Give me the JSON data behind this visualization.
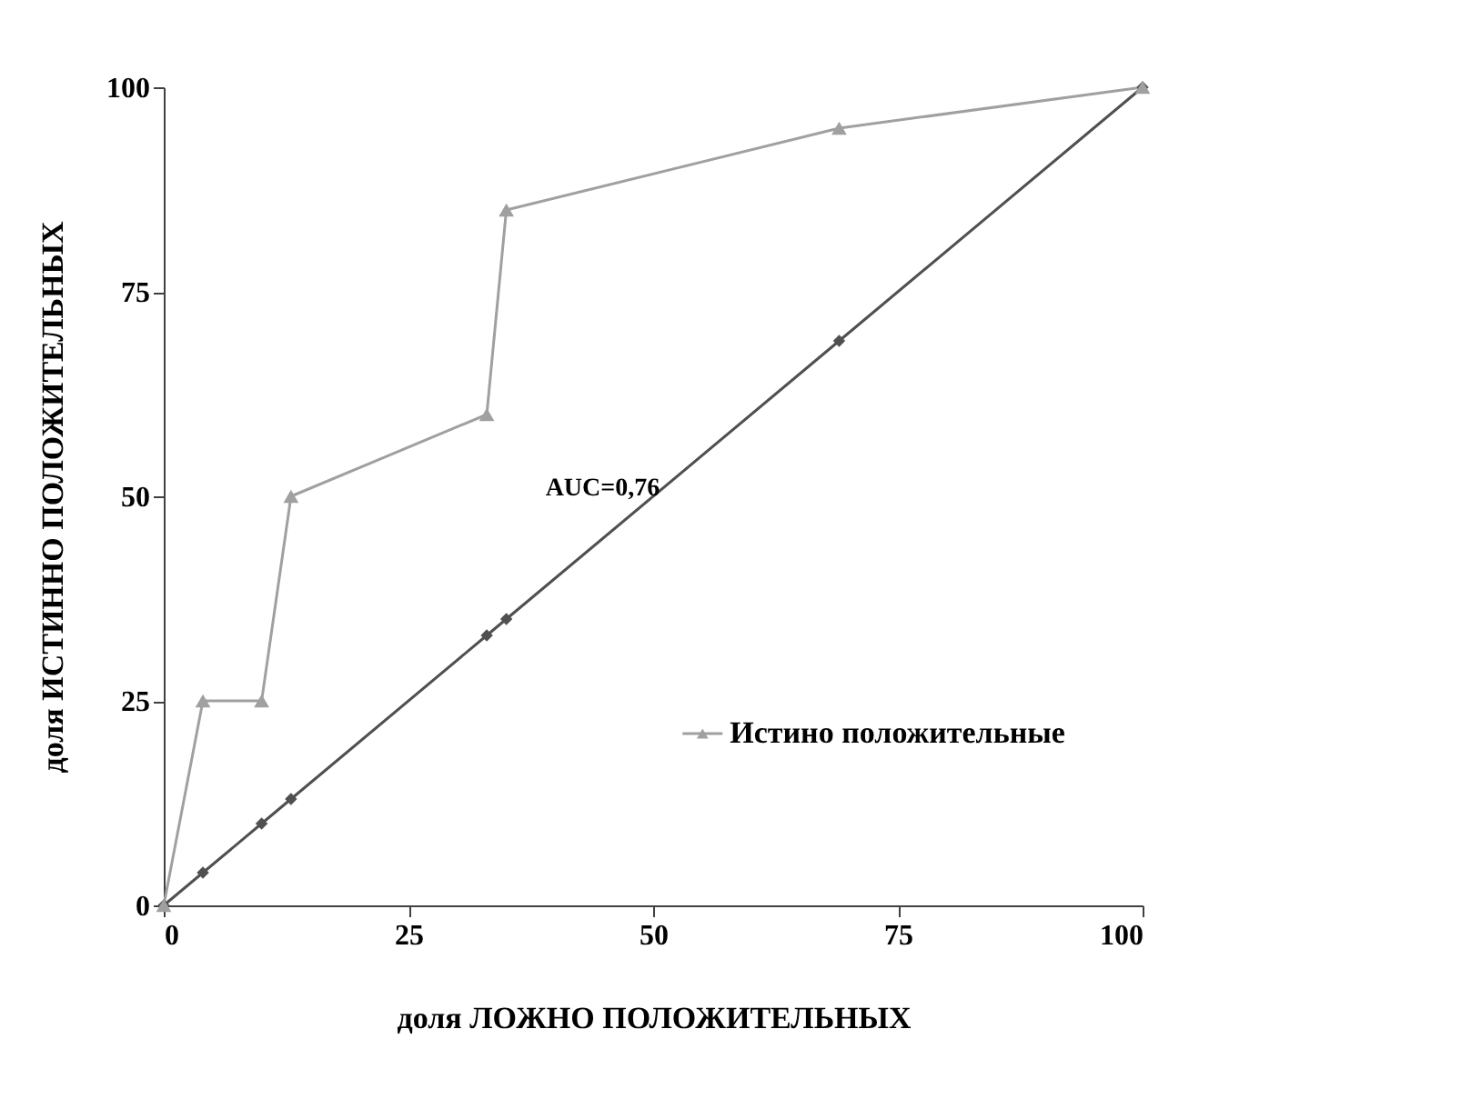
{
  "chart_data": {
    "type": "line",
    "xlabel": "доля ЛОЖНО ПОЛОЖИТЕЛЬНЫХ",
    "ylabel": "доля ИСТИННО ПОЛОЖИТЕЛЬНЫХ",
    "xlim": [
      0,
      100
    ],
    "ylim": [
      0,
      100
    ],
    "xticks": [
      0,
      25,
      50,
      75,
      100
    ],
    "yticks": [
      0,
      25,
      50,
      75,
      100
    ],
    "grid": false,
    "legend": "right",
    "annotations": [
      "AUC=0,76"
    ],
    "series": [
      {
        "name": "Истино положительные",
        "color": "#a0a0a0",
        "marker": "triangle",
        "x": [
          0,
          4,
          10,
          13,
          33,
          35,
          69,
          100
        ],
        "values": [
          0,
          25,
          25,
          50,
          60,
          85,
          95,
          100
        ]
      },
      {
        "color": "#505050",
        "marker": "diamond",
        "x": [
          0,
          4,
          10,
          13,
          33,
          35,
          69,
          100
        ],
        "values": [
          0,
          4,
          10,
          13,
          33,
          35,
          69,
          100
        ]
      }
    ]
  }
}
